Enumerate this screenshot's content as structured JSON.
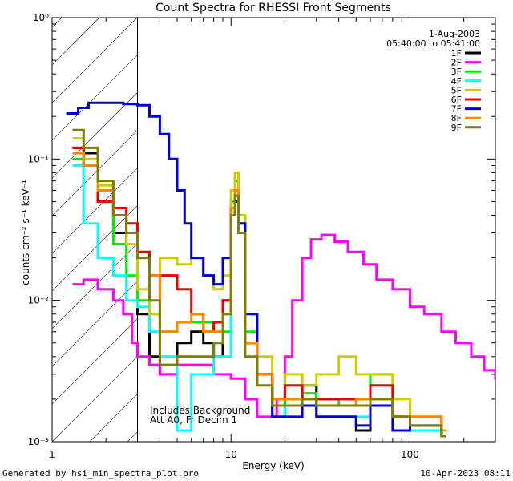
{
  "chart_data": {
    "type": "line",
    "title": "Count Spectra for RHESSI Front Segments",
    "xlabel": "Energy (keV)",
    "ylabel": "counts cm⁻² s⁻¹ keV⁻¹",
    "xscale": "log",
    "yscale": "log",
    "xlim": [
      1,
      300
    ],
    "ylim": [
      0.001,
      1
    ],
    "x_tick_labels": [
      {
        "value": 1,
        "label": "1"
      },
      {
        "value": 10,
        "label": "10"
      },
      {
        "value": 100,
        "label": "100"
      }
    ],
    "y_tick_labels": [
      {
        "value": 0.001,
        "label": "10⁻³"
      },
      {
        "value": 0.01,
        "label": "10⁻²"
      },
      {
        "value": 0.1,
        "label": "10⁻¹"
      },
      {
        "value": 1,
        "label": "10⁰"
      }
    ],
    "shaded_region": {
      "x_from": 1,
      "x_to": 3,
      "label": "hatched low-energy region"
    },
    "date_label": "1-Aug-2003",
    "time_range_label": "05:40:00 to 05:41:00",
    "annotations": [
      "Includes Background",
      "Att A0, Fr Decim 1"
    ],
    "legend_position": "top-right",
    "series": [
      {
        "name": "1F",
        "color": "#000000",
        "x": [
          1.3,
          1.5,
          1.8,
          2.2,
          2.6,
          3.0,
          3.5,
          4.0,
          5.0,
          6.0,
          7.0,
          8.0,
          9.0,
          10.0,
          10.5,
          11.0,
          12.0,
          14.0,
          17.0,
          20.0,
          25.0,
          30.0,
          40.0,
          50.0,
          60.0,
          80.0,
          100.0,
          150.0
        ],
        "y": [
          0.12,
          0.11,
          0.06,
          0.03,
          0.025,
          0.008,
          0.004,
          0.003,
          0.005,
          0.006,
          0.005,
          0.004,
          0.01,
          0.04,
          0.05,
          0.03,
          0.005,
          0.003,
          0.0015,
          0.002,
          0.0025,
          0.0015,
          0.0015,
          0.0012,
          0.002,
          0.0015,
          0.0012,
          0.0012
        ]
      },
      {
        "name": "2F",
        "color": "#ff00ff",
        "x": [
          1.3,
          1.5,
          1.8,
          2.0,
          2.2,
          2.5,
          2.8,
          3.0,
          3.5,
          4.0,
          5.0,
          6.0,
          8.0,
          10.0,
          12.0,
          14.0,
          16.0,
          18.0,
          20.0,
          22.0,
          25.0,
          28.0,
          32.0,
          38.0,
          45.0,
          55.0,
          65.0,
          80.0,
          100.0,
          120.0,
          150.0,
          180.0,
          220.0,
          260.0,
          300.0
        ],
        "y": [
          0.013,
          0.014,
          0.012,
          0.012,
          0.01,
          0.008,
          0.005,
          0.004,
          0.0035,
          0.003,
          0.0035,
          0.0035,
          0.003,
          0.0028,
          0.002,
          0.0015,
          0.0015,
          0.002,
          0.004,
          0.01,
          0.02,
          0.027,
          0.029,
          0.026,
          0.022,
          0.018,
          0.014,
          0.012,
          0.009,
          0.008,
          0.006,
          0.005,
          0.004,
          0.0032,
          0.0028
        ]
      },
      {
        "name": "3F",
        "color": "#00ee00",
        "x": [
          1.3,
          1.5,
          1.8,
          2.2,
          2.6,
          3.0,
          3.5,
          4.0,
          5.0,
          6.0,
          8.0,
          10.0,
          10.5,
          11.0,
          12.0,
          14.0,
          17.0,
          20.0,
          25.0,
          30.0,
          40.0,
          50.0,
          60.0,
          80.0,
          100.0,
          150.0
        ],
        "y": [
          0.1,
          0.09,
          0.05,
          0.025,
          0.015,
          0.01,
          0.008,
          0.006,
          0.007,
          0.007,
          0.006,
          0.05,
          0.07,
          0.035,
          0.006,
          0.003,
          0.0018,
          0.002,
          0.0022,
          0.002,
          0.0018,
          0.002,
          0.003,
          0.0015,
          0.0012,
          0.0012
        ]
      },
      {
        "name": "4F",
        "color": "#00ffff",
        "x": [
          1.3,
          1.5,
          1.8,
          2.2,
          2.6,
          3.0,
          3.5,
          4.0,
          5.0,
          6.0,
          8.0,
          10.0,
          10.5,
          11.0,
          12.0,
          14.0,
          17.0,
          20.0,
          25.0,
          30.0,
          40.0,
          50.0,
          60.0,
          80.0,
          100.0,
          150.0
        ],
        "y": [
          0.09,
          0.035,
          0.02,
          0.015,
          0.01,
          0.009,
          0.006,
          0.004,
          0.0012,
          0.003,
          0.004,
          0.04,
          0.06,
          0.03,
          0.005,
          0.003,
          0.0015,
          0.0018,
          0.002,
          0.0015,
          0.0015,
          0.0015,
          0.002,
          0.0012,
          0.0012,
          0.0011
        ]
      },
      {
        "name": "5F",
        "color": "#cccc00",
        "x": [
          1.3,
          1.5,
          1.8,
          2.2,
          2.6,
          3.0,
          3.5,
          4.0,
          5.0,
          6.0,
          7.0,
          8.0,
          9.0,
          10.0,
          10.5,
          11.0,
          12.0,
          14.0,
          17.0,
          20.0,
          25.0,
          30.0,
          40.0,
          50.0,
          60.0,
          80.0,
          100.0,
          150.0
        ],
        "y": [
          0.14,
          0.1,
          0.065,
          0.04,
          0.025,
          0.012,
          0.008,
          0.02,
          0.018,
          0.02,
          0.015,
          0.012,
          0.015,
          0.06,
          0.08,
          0.04,
          0.008,
          0.004,
          0.002,
          0.003,
          0.0025,
          0.003,
          0.004,
          0.003,
          0.003,
          0.002,
          0.0015,
          0.0012
        ]
      },
      {
        "name": "6F",
        "color": "#ee0000",
        "x": [
          1.3,
          1.5,
          1.8,
          2.2,
          2.6,
          3.0,
          3.5,
          4.0,
          5.0,
          6.0,
          7.0,
          8.0,
          9.0,
          10.0,
          10.5,
          11.0,
          12.0,
          14.0,
          17.0,
          20.0,
          25.0,
          30.0,
          40.0,
          50.0,
          60.0,
          80.0,
          100.0,
          150.0
        ],
        "y": [
          0.12,
          0.09,
          0.05,
          0.045,
          0.035,
          0.022,
          0.015,
          0.015,
          0.012,
          0.008,
          0.006,
          0.007,
          0.01,
          0.04,
          0.055,
          0.03,
          0.005,
          0.003,
          0.002,
          0.0025,
          0.002,
          0.002,
          0.002,
          0.002,
          0.0025,
          0.0015,
          0.0015,
          0.0012
        ]
      },
      {
        "name": "7F",
        "color": "#0000dd",
        "x": [
          1.2,
          1.4,
          1.6,
          2.0,
          2.5,
          3.0,
          3.5,
          4.0,
          4.5,
          5.0,
          5.5,
          6.0,
          7.0,
          8.0,
          9.0,
          10.0,
          10.5,
          11.0,
          12.0,
          14.0,
          17.0,
          20.0,
          25.0,
          30.0,
          40.0,
          50.0,
          60.0,
          80.0,
          100.0,
          150.0
        ],
        "y": [
          0.21,
          0.23,
          0.25,
          0.25,
          0.245,
          0.24,
          0.2,
          0.15,
          0.1,
          0.06,
          0.035,
          0.02,
          0.015,
          0.013,
          0.02,
          0.045,
          0.06,
          0.035,
          0.008,
          0.003,
          0.0015,
          0.0015,
          0.0018,
          0.0015,
          0.0015,
          0.0013,
          0.0018,
          0.0012,
          0.0013,
          0.0011
        ]
      },
      {
        "name": "8F",
        "color": "#ff8800",
        "x": [
          1.3,
          1.5,
          1.8,
          2.2,
          2.6,
          3.0,
          3.5,
          4.0,
          5.0,
          6.0,
          7.0,
          8.0,
          9.0,
          10.0,
          10.5,
          11.0,
          12.0,
          14.0,
          17.0,
          20.0,
          25.0,
          30.0,
          40.0,
          50.0,
          60.0,
          80.0,
          100.0,
          150.0
        ],
        "y": [
          0.11,
          0.09,
          0.06,
          0.04,
          0.03,
          0.02,
          0.015,
          0.006,
          0.007,
          0.008,
          0.006,
          0.006,
          0.008,
          0.045,
          0.06,
          0.03,
          0.005,
          0.003,
          0.002,
          0.002,
          0.002,
          0.0018,
          0.0018,
          0.002,
          0.002,
          0.0015,
          0.0015,
          0.0012
        ]
      },
      {
        "name": "9F",
        "color": "#7f7f00",
        "x": [
          1.3,
          1.5,
          1.8,
          2.2,
          2.6,
          3.0,
          3.5,
          4.0,
          5.0,
          6.0,
          7.0,
          8.0,
          9.0,
          10.0,
          10.5,
          11.0,
          12.0,
          14.0,
          17.0,
          20.0,
          25.0,
          30.0,
          40.0,
          50.0,
          60.0,
          80.0,
          100.0,
          150.0
        ],
        "y": [
          0.16,
          0.12,
          0.07,
          0.04,
          0.03,
          0.02,
          0.01,
          0.0035,
          0.004,
          0.004,
          0.004,
          0.005,
          0.008,
          0.04,
          0.055,
          0.03,
          0.004,
          0.0025,
          0.0018,
          0.0018,
          0.002,
          0.0018,
          0.0018,
          0.0018,
          0.002,
          0.0015,
          0.0013,
          0.0011
        ]
      }
    ]
  },
  "footer": {
    "generated_by": "Generated by hsi_min_spectra_plot.pro",
    "timestamp": "10-Apr-2023 08:11"
  }
}
